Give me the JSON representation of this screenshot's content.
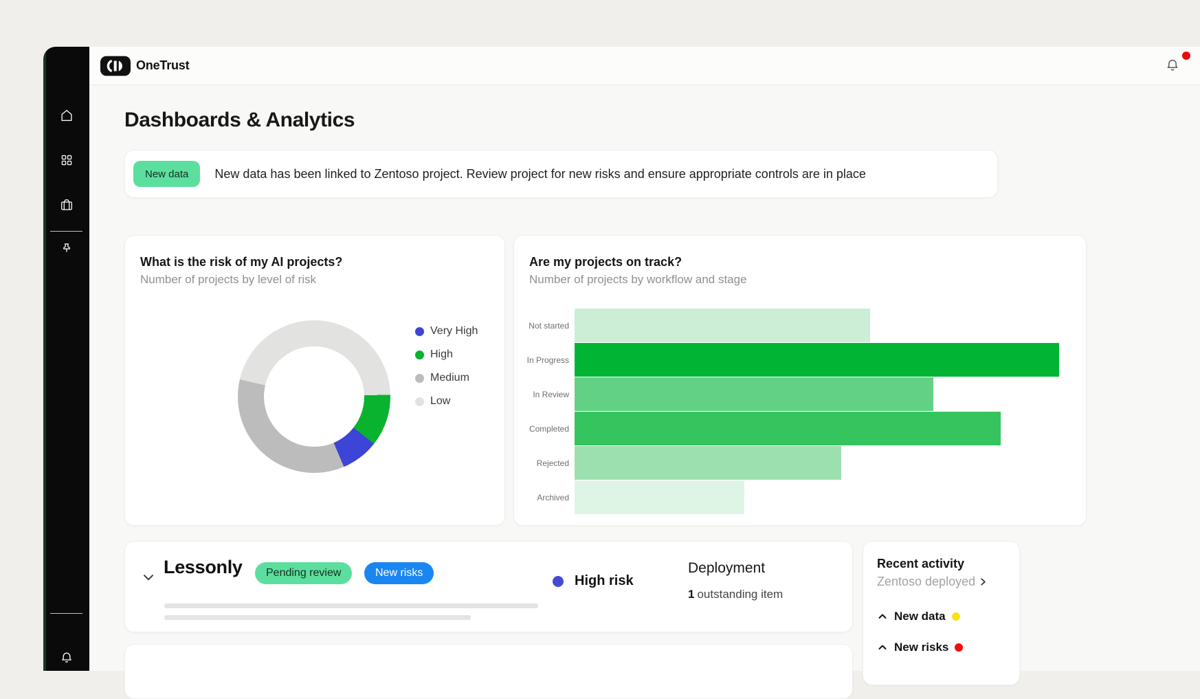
{
  "window": {
    "brand": "OneTrust",
    "page_title": "Dashboards & Analytics"
  },
  "sidebar": {
    "nav_icons": [
      "home",
      "apps-grid",
      "briefcase",
      "pin"
    ],
    "bottom_icons": [
      "bell"
    ]
  },
  "header": {
    "notification_unread_dot": true
  },
  "banner": {
    "badge_label": "New data",
    "message": "New data has been linked to Zentoso project. Review project for new risks and ensure appropriate controls are in place"
  },
  "risk_card": {
    "title": "What is the risk of my AI projects?",
    "subtitle": "Number of projects by level of risk"
  },
  "track_card": {
    "title": "Are my projects on track?",
    "subtitle": "Number of projects by workflow and stage"
  },
  "chart_data": [
    {
      "type": "pie",
      "variant": "donut",
      "title": "What is the risk of my AI projects?",
      "subtitle": "Number of projects by level of risk",
      "categories": [
        "Very High",
        "High",
        "Medium",
        "Low"
      ],
      "values_pct": [
        8,
        11,
        35,
        46
      ],
      "colors": [
        "#3c45d6",
        "#09b32f",
        "#bcbcbc",
        "#e2e2e0"
      ],
      "legend_position": "right",
      "draw_order": [
        3,
        1,
        0,
        2
      ],
      "start_angle_deg": -77,
      "data_labels_visible": false
    },
    {
      "type": "bar",
      "orientation": "horizontal",
      "title": "Are my projects on track?",
      "subtitle": "Number of projects by workflow and stage",
      "categories": [
        "Not started",
        "In Progress",
        "In Review",
        "Completed",
        "Rejected",
        "Archived"
      ],
      "values_pct_of_max": [
        61,
        100,
        74,
        88,
        55,
        35
      ],
      "colors": [
        "#cceed6",
        "#01b434",
        "#63d185",
        "#35c45e",
        "#9ce0b0",
        "#def5e6"
      ],
      "axis_labels_visible": false,
      "grid": false
    }
  ],
  "project_row": {
    "name": "Lessonly",
    "status_badge": "Pending review",
    "alert_badge": "New risks",
    "risk_level": "High risk",
    "stage": "Deployment",
    "outstanding_count": "1",
    "outstanding_label": "outstanding item"
  },
  "recent_activity": {
    "title": "Recent activity",
    "link_label": "Zentoso deployed",
    "items": [
      {
        "label": "New data",
        "dot_color": "#f6e216"
      },
      {
        "label": "New risks",
        "dot_color": "#f20d0d"
      }
    ]
  },
  "colors": {
    "accent_green": "#01b434",
    "badge_mint": "#5cdf9e",
    "pill_blue": "#1a86f2",
    "risk_dot_indigo": "#444bd3",
    "notification_red": "#ea0b0b",
    "activity_yellow": "#f6e216",
    "activity_red": "#f20d0d",
    "sidebar_black": "#0a0a0a",
    "outer_background": "#f0efeb"
  }
}
